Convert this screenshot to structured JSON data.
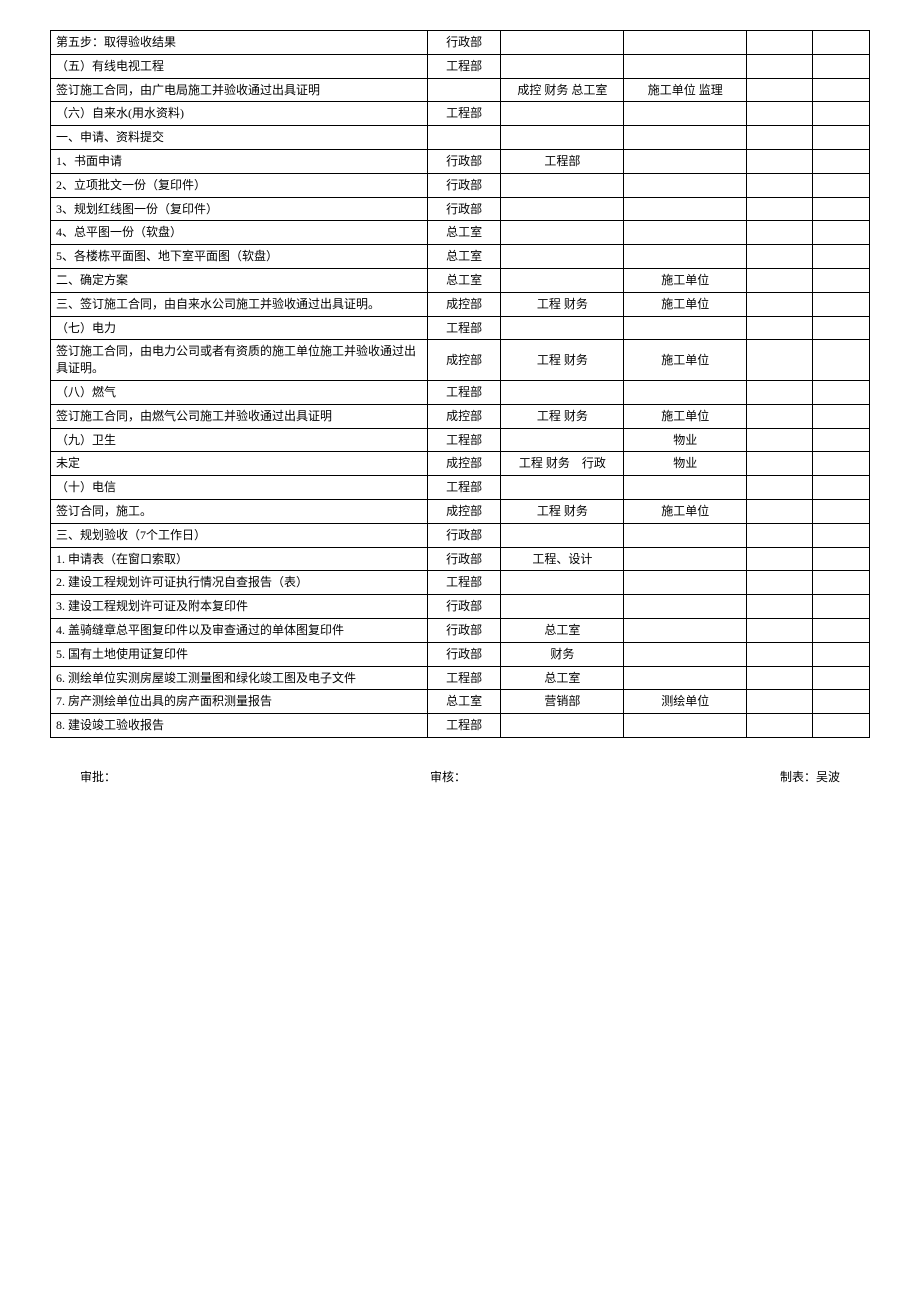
{
  "rows": [
    {
      "c1": "第五步：取得验收结果",
      "c2": "行政部",
      "c3": "",
      "c4": "",
      "c5": "",
      "c6": ""
    },
    {
      "c1": "（五）有线电视工程",
      "c2": "工程部",
      "c3": "",
      "c4": "",
      "c5": "",
      "c6": ""
    },
    {
      "c1": "签订施工合同，由广电局施工并验收通过出具证明",
      "c2": "",
      "c3": "成控 财务 总工室",
      "c4": "施工单位 监理",
      "c5": "",
      "c6": ""
    },
    {
      "c1": "（六）自来水(用水资料)",
      "c2": "工程部",
      "c3": "",
      "c4": "",
      "c5": "",
      "c6": ""
    },
    {
      "c1": "一、申请、资料提交",
      "c2": "",
      "c3": "",
      "c4": "",
      "c5": "",
      "c6": ""
    },
    {
      "c1": "1、书面申请",
      "c2": "行政部",
      "c3": "工程部",
      "c4": "",
      "c5": "",
      "c6": ""
    },
    {
      "c1": "2、立项批文一份（复印件）",
      "c2": "行政部",
      "c3": "",
      "c4": "",
      "c5": "",
      "c6": ""
    },
    {
      "c1": "3、规划红线图一份（复印件）",
      "c2": "行政部",
      "c3": "",
      "c4": "",
      "c5": "",
      "c6": ""
    },
    {
      "c1": "4、总平图一份（软盘）",
      "c2": "总工室",
      "c3": "",
      "c4": "",
      "c5": "",
      "c6": ""
    },
    {
      "c1": "5、各楼栋平面图、地下室平面图（软盘）",
      "c2": "总工室",
      "c3": "",
      "c4": "",
      "c5": "",
      "c6": ""
    },
    {
      "c1": "二、确定方案",
      "c2": "总工室",
      "c3": "",
      "c4": "施工单位",
      "c5": "",
      "c6": ""
    },
    {
      "c1": "三、签订施工合同，由自来水公司施工并验收通过出具证明。",
      "c2": "成控部",
      "c3": "工程 财务",
      "c4": "施工单位",
      "c5": "",
      "c6": ""
    },
    {
      "c1": "（七）电力",
      "c2": "工程部",
      "c3": "",
      "c4": "",
      "c5": "",
      "c6": ""
    },
    {
      "c1": "签订施工合同，由电力公司或者有资质的施工单位施工并验收通过出具证明。",
      "c2": "成控部",
      "c3": "工程 财务",
      "c4": "施工单位",
      "c5": "",
      "c6": ""
    },
    {
      "c1": "（八）燃气",
      "c2": "工程部",
      "c3": "",
      "c4": "",
      "c5": "",
      "c6": ""
    },
    {
      "c1": "签订施工合同，由燃气公司施工并验收通过出具证明",
      "c2": "成控部",
      "c3": "工程 财务",
      "c4": "施工单位",
      "c5": "",
      "c6": ""
    },
    {
      "c1": "（九）卫生",
      "c2": "工程部",
      "c3": "",
      "c4": "物业",
      "c5": "",
      "c6": ""
    },
    {
      "c1": "未定",
      "c2": "成控部",
      "c3": "工程 财务　行政",
      "c4": "物业",
      "c5": "",
      "c6": ""
    },
    {
      "c1": "（十）电信",
      "c2": "工程部",
      "c3": "",
      "c4": "",
      "c5": "",
      "c6": ""
    },
    {
      "c1": "签订合同，施工。",
      "c2": "成控部",
      "c3": "工程 财务",
      "c4": "施工单位",
      "c5": "",
      "c6": ""
    },
    {
      "c1": "三、规划验收（7个工作日）",
      "c2": "行政部",
      "c3": "",
      "c4": "",
      "c5": "",
      "c6": ""
    },
    {
      "c1": "1. 申请表（在窗口索取）",
      "c2": "行政部",
      "c3": "工程、设计",
      "c4": "",
      "c5": "",
      "c6": ""
    },
    {
      "c1": "2. 建设工程规划许可证执行情况自查报告（表）",
      "c2": "工程部",
      "c3": "",
      "c4": "",
      "c5": "",
      "c6": ""
    },
    {
      "c1": "3. 建设工程规划许可证及附本复印件",
      "c2": "行政部",
      "c3": "",
      "c4": "",
      "c5": "",
      "c6": ""
    },
    {
      "c1": "4. 盖骑缝章总平图复印件以及审查通过的单体图复印件",
      "c2": "行政部",
      "c3": "总工室",
      "c4": "",
      "c5": "",
      "c6": ""
    },
    {
      "c1": "5. 国有土地使用证复印件",
      "c2": "行政部",
      "c3": "财务",
      "c4": "",
      "c5": "",
      "c6": ""
    },
    {
      "c1": "6. 测绘单位实测房屋竣工测量图和绿化竣工图及电子文件",
      "c2": "工程部",
      "c3": "总工室",
      "c4": "",
      "c5": "",
      "c6": ""
    },
    {
      "c1": "7. 房产测绘单位出具的房产面积测量报告",
      "c2": "总工室",
      "c3": "营销部",
      "c4": "测绘单位",
      "c5": "",
      "c6": ""
    },
    {
      "c1": "8. 建设竣工验收报告",
      "c2": "工程部",
      "c3": "",
      "c4": "",
      "c5": "",
      "c6": ""
    }
  ],
  "footer": {
    "approve": "审批：",
    "review": "审核：",
    "author": "制表：吴波"
  }
}
